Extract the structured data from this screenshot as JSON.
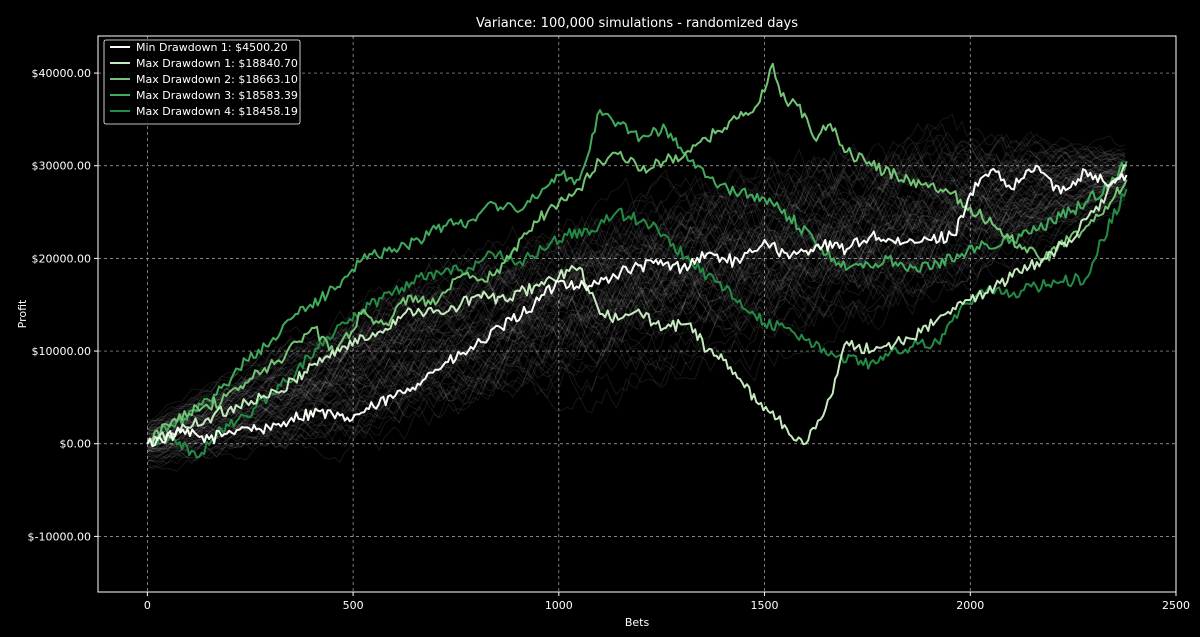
{
  "chart_data": {
    "type": "line",
    "title": "Variance: 100,000 simulations - randomized days",
    "xlabel": "Bets",
    "ylabel": "Profit",
    "xlim": [
      -120,
      2500
    ],
    "ylim": [
      -16000,
      44000
    ],
    "xticks": [
      0,
      500,
      1000,
      1500,
      2000,
      2500
    ],
    "yticks": [
      {
        "value": -10000,
        "label": "$-10000.00"
      },
      {
        "value": 0,
        "label": "$0.00"
      },
      {
        "value": 10000,
        "label": "$10000.00"
      },
      {
        "value": 20000,
        "label": "$20000.00"
      },
      {
        "value": 30000,
        "label": "$30000.00"
      },
      {
        "value": 40000,
        "label": "$40000.00"
      }
    ],
    "grid": true,
    "legend_position": "top-left",
    "background_simulations": {
      "color": "#ffffff",
      "band_center": [
        [
          0,
          0
        ],
        [
          500,
          7500
        ],
        [
          1000,
          15000
        ],
        [
          1500,
          20000
        ],
        [
          2000,
          25000
        ],
        [
          2380,
          29000
        ]
      ],
      "band_halfwidth": [
        [
          0,
          2500
        ],
        [
          500,
          6500
        ],
        [
          1000,
          8500
        ],
        [
          1500,
          9000
        ],
        [
          2000,
          8000
        ],
        [
          2380,
          2500
        ]
      ]
    },
    "series": [
      {
        "name": "Min Drawdown 1: $4500.20",
        "color": "#f7fcf5",
        "x": [
          0,
          80,
          150,
          230,
          300,
          350,
          420,
          480,
          550,
          620,
          700,
          780,
          860,
          940,
          1000,
          1080,
          1150,
          1230,
          1300,
          1360,
          1440,
          1500,
          1560,
          1630,
          1700,
          1760,
          1830,
          1900,
          1960,
          2000,
          2050,
          2100,
          2160,
          2220,
          2280,
          2340,
          2380
        ],
        "y": [
          0,
          1200,
          500,
          1800,
          1500,
          2800,
          3500,
          2500,
          4000,
          5500,
          8000,
          10000,
          12500,
          15000,
          17500,
          17000,
          18500,
          19500,
          19000,
          20500,
          19500,
          22000,
          20000,
          21500,
          21000,
          22500,
          21500,
          22000,
          22500,
          27000,
          29500,
          27500,
          30000,
          27000,
          29500,
          28000,
          29000
        ]
      },
      {
        "name": "Max Drawdown 1: $18840.70",
        "color": "#c7e9c0",
        "x": [
          0,
          80,
          160,
          240,
          320,
          400,
          480,
          560,
          640,
          720,
          800,
          870,
          940,
          1000,
          1050,
          1100,
          1150,
          1200,
          1260,
          1320,
          1360,
          1400,
          1440,
          1480,
          1520,
          1560,
          1600,
          1630,
          1660,
          1700,
          1760,
          1820,
          1880,
          1940,
          2000,
          2060,
          2120,
          2180,
          2240,
          2300,
          2380
        ],
        "y": [
          0,
          1500,
          3000,
          4500,
          5500,
          8500,
          10500,
          12000,
          14500,
          14000,
          16000,
          15500,
          17000,
          18000,
          19000,
          14000,
          13500,
          14000,
          12500,
          13000,
          10000,
          9000,
          7000,
          4500,
          3500,
          1000,
          0,
          2500,
          5000,
          11000,
          10000,
          11000,
          12000,
          14000,
          15500,
          17000,
          18500,
          20000,
          22000,
          25000,
          30000
        ]
      },
      {
        "name": "Max Drawdown 2: $18663.10",
        "color": "#74c476",
        "x": [
          0,
          60,
          120,
          180,
          250,
          320,
          400,
          460,
          520,
          580,
          640,
          700,
          760,
          820,
          880,
          940,
          1000,
          1050,
          1100,
          1150,
          1200,
          1260,
          1320,
          1380,
          1420,
          1460,
          1500,
          1520,
          1540,
          1580,
          1620,
          1660,
          1700,
          1760,
          1820,
          1880,
          1940,
          2000,
          2060,
          2120,
          2180,
          2240,
          2300,
          2340,
          2380
        ],
        "y": [
          0,
          2500,
          4000,
          4500,
          7000,
          9000,
          12500,
          10000,
          14000,
          13000,
          16000,
          15000,
          18000,
          17500,
          20000,
          24000,
          26000,
          27500,
          30500,
          31500,
          29500,
          30500,
          31500,
          33500,
          35000,
          35500,
          38000,
          41000,
          37500,
          36500,
          33000,
          34500,
          31500,
          30000,
          29000,
          28000,
          27500,
          25500,
          23500,
          21500,
          20000,
          22000,
          24000,
          26000,
          28500
        ]
      },
      {
        "name": "Max Drawdown 3: $18583.39",
        "color": "#41ab5d",
        "x": [
          0,
          60,
          120,
          180,
          240,
          300,
          360,
          420,
          480,
          540,
          600,
          660,
          720,
          780,
          840,
          900,
          960,
          1000,
          1050,
          1100,
          1150,
          1200,
          1260,
          1320,
          1380,
          1440,
          1500,
          1560,
          1620,
          1680,
          1740,
          1800,
          1860,
          1920,
          1980,
          2040,
          2100,
          2160,
          2220,
          2280,
          2340,
          2380
        ],
        "y": [
          0,
          2000,
          3500,
          6000,
          9000,
          11000,
          14000,
          15500,
          18000,
          20500,
          21000,
          22000,
          23500,
          24000,
          26000,
          25000,
          27500,
          29000,
          28500,
          36000,
          34500,
          33000,
          34000,
          30500,
          28000,
          27000,
          26500,
          24500,
          22000,
          19500,
          19000,
          20000,
          19000,
          19500,
          20500,
          21500,
          22000,
          23000,
          24500,
          26000,
          28000,
          30500
        ]
      },
      {
        "name": "Max Drawdown 4: $18458.19",
        "color": "#238b45",
        "x": [
          0,
          60,
          120,
          180,
          240,
          300,
          360,
          420,
          480,
          540,
          600,
          660,
          720,
          780,
          840,
          900,
          960,
          1020,
          1080,
          1140,
          1200,
          1260,
          1320,
          1380,
          1440,
          1500,
          1560,
          1620,
          1680,
          1740,
          1800,
          1860,
          1920,
          1980,
          2040,
          2100,
          2160,
          2220,
          2280,
          2320,
          2380
        ],
        "y": [
          0,
          1000,
          -1500,
          1500,
          3000,
          5500,
          7500,
          11000,
          13000,
          15000,
          16500,
          18000,
          18500,
          19000,
          20500,
          19500,
          21000,
          22500,
          23000,
          25000,
          24000,
          22500,
          19500,
          17500,
          15500,
          13000,
          12500,
          10500,
          9500,
          8500,
          9500,
          10500,
          11000,
          15000,
          16500,
          16000,
          17000,
          17500,
          17800,
          22000,
          27500
        ]
      }
    ]
  }
}
